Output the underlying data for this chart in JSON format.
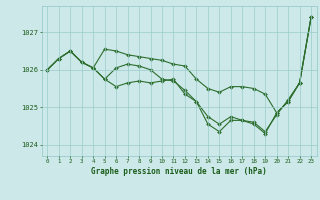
{
  "xlabel": "Graphe pression niveau de la mer (hPa)",
  "xlim": [
    -0.5,
    23.5
  ],
  "ylim": [
    1023.7,
    1027.7
  ],
  "yticks": [
    1024,
    1025,
    1026,
    1027
  ],
  "xticks": [
    0,
    1,
    2,
    3,
    4,
    5,
    6,
    7,
    8,
    9,
    10,
    11,
    12,
    13,
    14,
    15,
    16,
    17,
    18,
    19,
    20,
    21,
    22,
    23
  ],
  "bg_color": "#cce8e8",
  "grid_color": "#99cccc",
  "line_color": "#2d6e2d",
  "line1": [
    1026.0,
    1026.3,
    1026.5,
    1026.2,
    1026.05,
    1025.75,
    1025.55,
    1025.65,
    1025.7,
    1025.65,
    1025.7,
    1025.75,
    1025.35,
    1025.15,
    1024.55,
    1024.35,
    1024.65,
    1024.65,
    1024.6,
    1024.35,
    1024.8,
    1025.2,
    1025.65,
    1027.4
  ],
  "line2": [
    1026.0,
    1026.3,
    1026.5,
    1026.2,
    1026.05,
    1025.75,
    1026.05,
    1026.15,
    1026.1,
    1026.0,
    1025.75,
    1025.7,
    1025.45,
    1025.15,
    1024.75,
    1024.55,
    1024.75,
    1024.65,
    1024.55,
    1024.3,
    1024.85,
    1025.15,
    1025.65,
    1027.4
  ],
  "line3": [
    1026.0,
    1026.3,
    1026.5,
    1026.2,
    1026.05,
    1026.55,
    1026.5,
    1026.4,
    1026.35,
    1026.3,
    1026.25,
    1026.15,
    1026.1,
    1025.75,
    1025.5,
    1025.4,
    1025.55,
    1025.55,
    1025.5,
    1025.35,
    1024.85,
    1025.15,
    1025.65,
    1027.4
  ],
  "font_color": "#1a5c1a",
  "marker": "D",
  "markersize": 2.0,
  "linewidth": 0.8
}
